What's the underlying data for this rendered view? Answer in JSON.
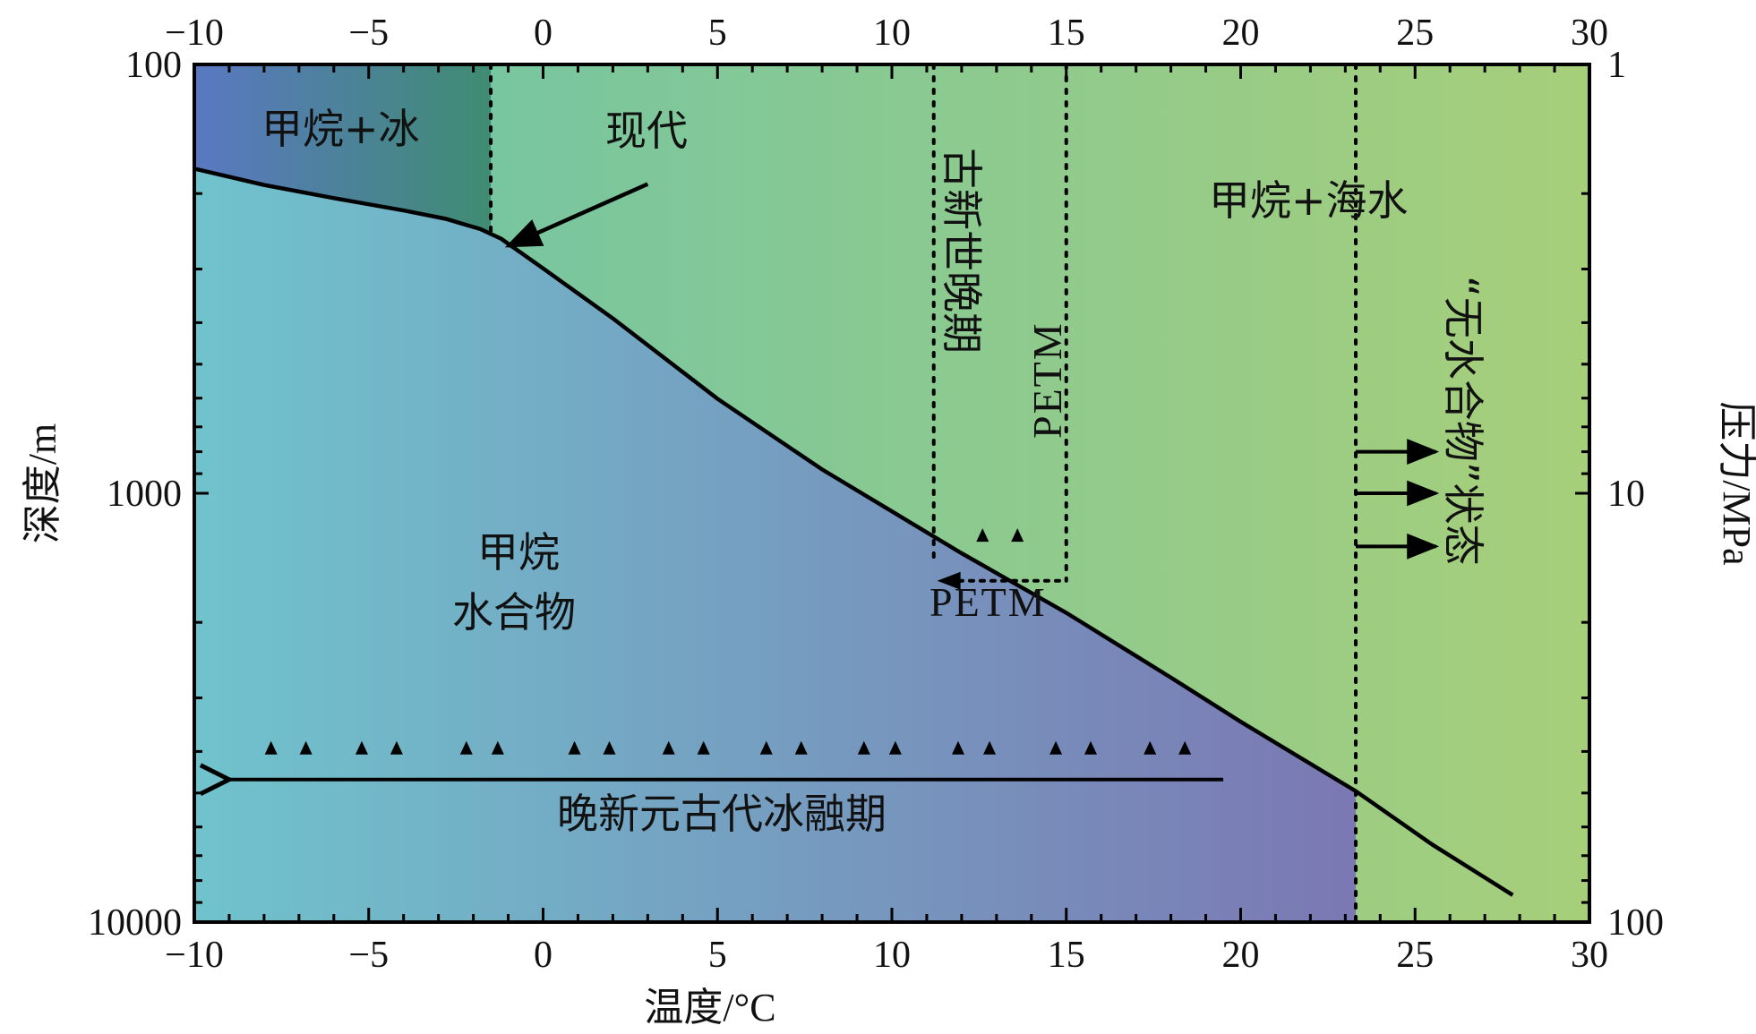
{
  "chart_data": {
    "type": "line",
    "xlabel": "温度/°C",
    "ylabel_left": "深度/m",
    "ylabel_right": "压力/MPa",
    "xlim": [
      -10,
      30
    ],
    "ylim": [
      100,
      10000
    ],
    "y_scale": "log",
    "x_ticks": [
      -10,
      -5,
      0,
      5,
      10,
      15,
      20,
      25,
      30
    ],
    "x_tick_labels": [
      "−10",
      "−5",
      "0",
      "5",
      "10",
      "15",
      "20",
      "25",
      "30"
    ],
    "y_ticks_left": [
      100,
      1000,
      10000
    ],
    "y_tick_labels_left": [
      "100",
      "1000",
      "10000"
    ],
    "y_ticks_right_labels": [
      "1",
      "10",
      "100"
    ],
    "series": [
      {
        "name": "",
        "x": [
          -10,
          -8,
          -6,
          -4,
          -2.8,
          -1.8,
          -1.2,
          0,
          2,
          5,
          8,
          10,
          12,
          15,
          18,
          20,
          23.3,
          25.5,
          27.8
        ],
        "y": [
          175,
          191,
          205,
          219,
          229,
          242,
          255,
          299,
          391,
          602,
          880,
          1102,
          1380,
          1900,
          2690,
          3410,
          4950,
          6600,
          8650
        ]
      }
    ],
    "vertical_dotted_lines": [
      {
        "x": -1.5,
        "from": 100,
        "to": 250
      },
      {
        "x": 11.2,
        "from": 100,
        "to": 1450
      },
      {
        "x": 15.0,
        "from": 100,
        "to": 1600
      },
      {
        "x": 23.3,
        "from": 100,
        "to": 10000
      }
    ],
    "petm_arrow": {
      "from_x": 14.8,
      "to_x": 11.3,
      "y": 1600
    },
    "main_arrow": {
      "from_x": 19.5,
      "to_x": -9.0,
      "y": 4650
    },
    "modern_arrow": {
      "from": [
        3.0,
        190
      ],
      "to": [
        -1.0,
        265
      ]
    },
    "right_arrows": [
      {
        "x_from": 23.3,
        "x_to": 25.6,
        "y": 1000
      },
      {
        "x_from": 23.3,
        "x_to": 25.6,
        "y": 1330
      },
      {
        "x_from": 23.3,
        "x_to": 25.6,
        "y": 800
      }
    ],
    "triangles_main": [
      -7.8,
      -6.8,
      -5.2,
      -4.2,
      -2.2,
      -1.3,
      0.9,
      1.9,
      3.6,
      4.6,
      6.4,
      7.4,
      9.2,
      10.1,
      11.9,
      12.8,
      14.7,
      15.7,
      17.4,
      18.4
    ],
    "triangles_main_y": 3950,
    "triangles_petm": [
      12.6,
      13.6
    ],
    "triangles_petm_y": 1260,
    "colors": {
      "hydrate_left": "#70c3cd",
      "hydrate_right": "#7b78b3",
      "water_left": "#6bc3aa",
      "water_right": "#a7cf7a",
      "ice_left": "#5a78c2",
      "ice_right": "#3f8c72",
      "line": "#000000"
    },
    "annotations": {
      "ice_region": "甲烷+冰",
      "modern": "现代",
      "late_paleocene": "古新世晚期",
      "petm_vertical": "PETM",
      "petm_horizontal": "PETM",
      "methane_seawater": "甲烷+海水",
      "hydrate_line1": "甲烷",
      "hydrate_line2": "水合物",
      "anhydrous_state": "“无水合物”状态",
      "neoproterozoic": "晚新元古代冰融期"
    }
  }
}
